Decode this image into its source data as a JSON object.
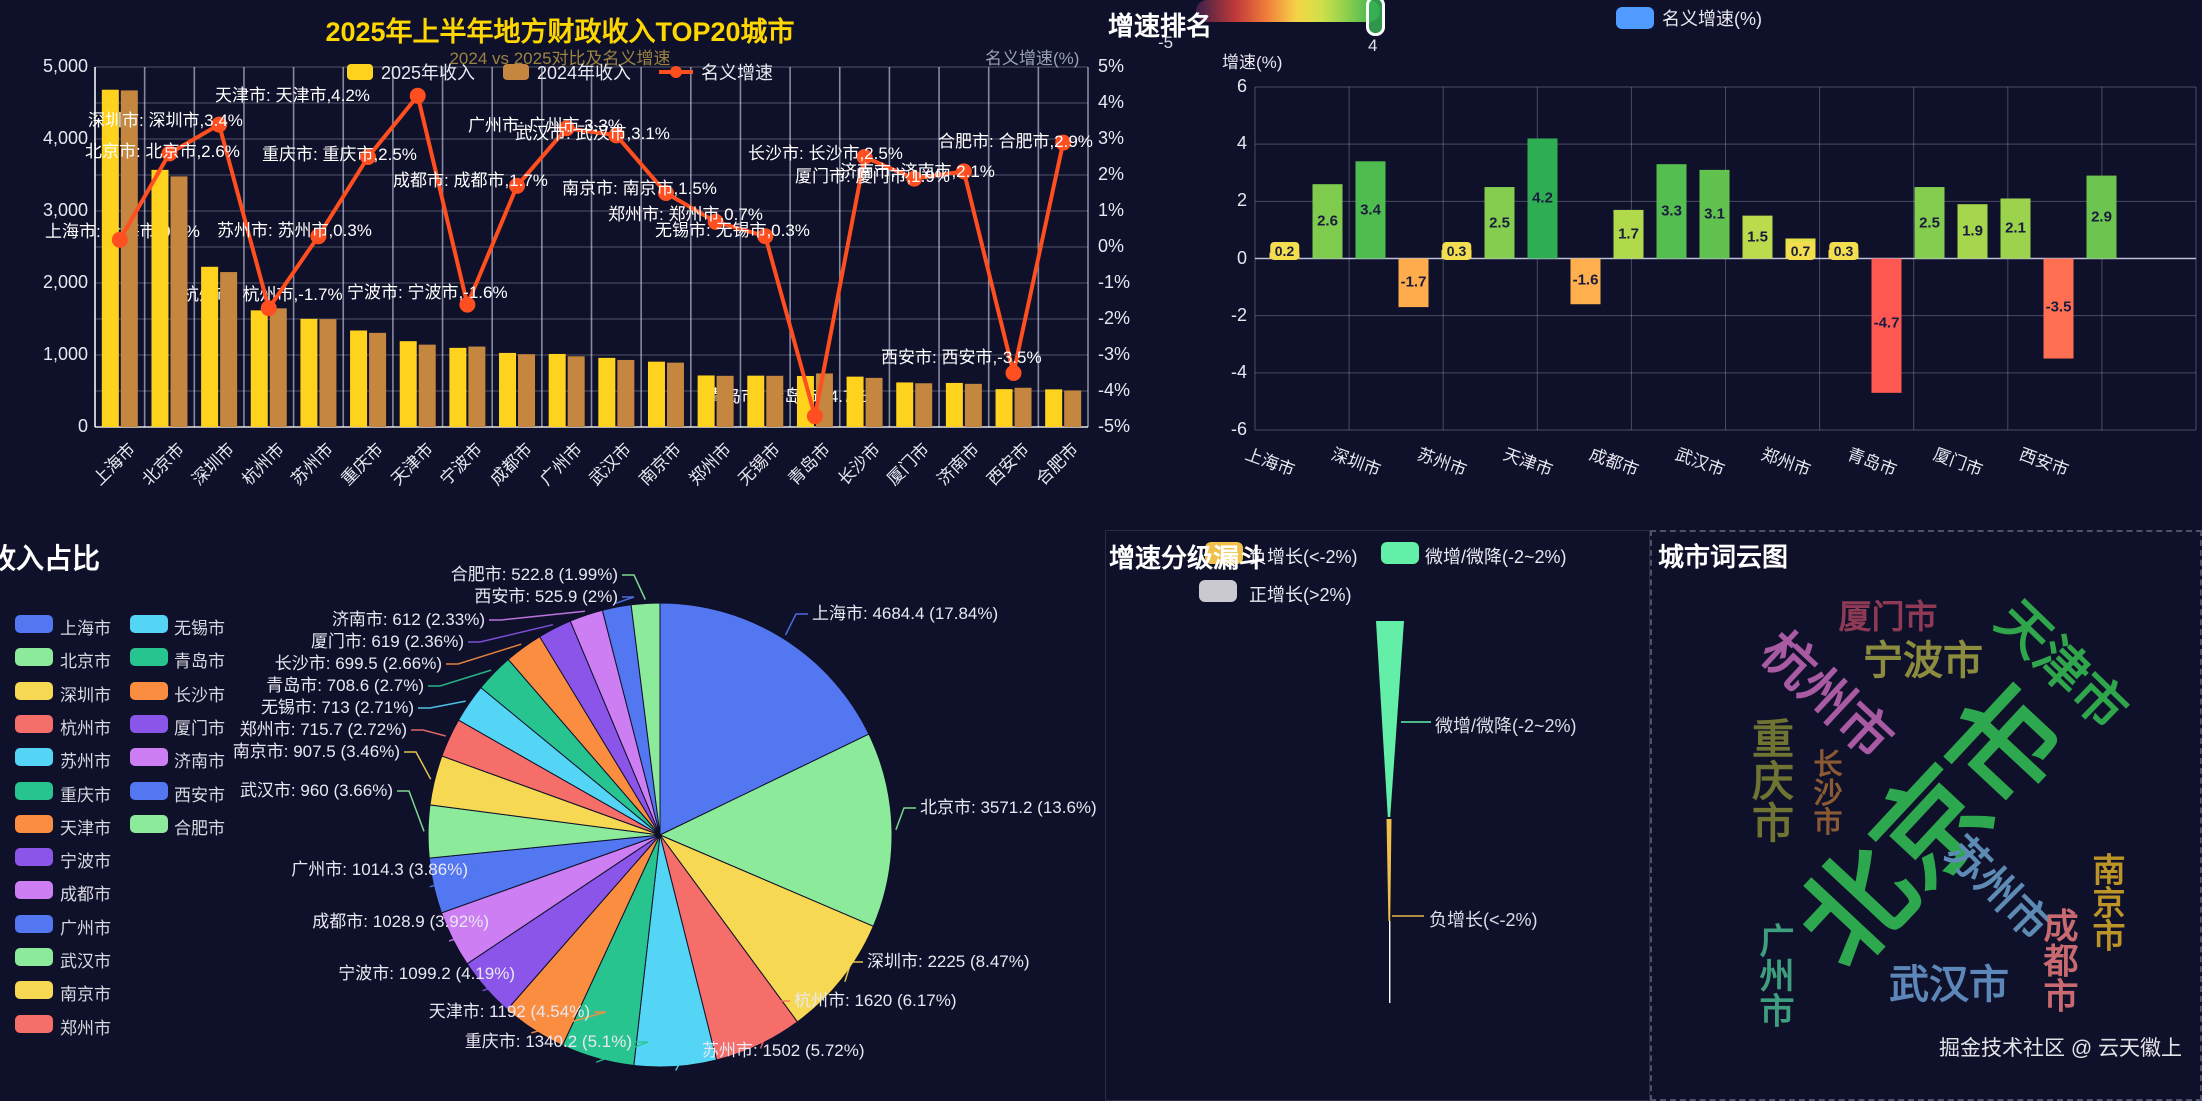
{
  "page": {
    "background": "#0f112a",
    "credit": "掘金技术社区 @ 云天徽上"
  },
  "combo": {
    "title": "2025年上半年地方财政收入TOP20城市",
    "subtitle": "2024 vs 2025对比及名义增速",
    "legend": [
      "2025年收入",
      "2024年收入",
      "名义增速"
    ],
    "y_right_name": "名义增速(%)",
    "colors": {
      "bar2025": "#FFD21E",
      "bar2024": "#C5863F",
      "line": "#FF4E1F"
    }
  },
  "rank": {
    "title": "增速排名",
    "legend": "名义增速(%)",
    "legend_color": "#4F9BFF",
    "vm_min": "-5",
    "vm_max": "4",
    "y_name": "增速(%)"
  },
  "pie": {
    "title": "收入占比",
    "legend_col1": [
      "上海市",
      "北京市",
      "深圳市",
      "杭州市",
      "苏州市",
      "重庆市",
      "天津市",
      "宁波市",
      "成都市",
      "广州市",
      "武汉市",
      "南京市",
      "郑州市"
    ],
    "legend_col2": [
      "无锡市",
      "青岛市",
      "长沙市",
      "厦门市",
      "济南市",
      "西安市",
      "合肥市"
    ]
  },
  "funnel": {
    "title": "增速分级漏斗",
    "legend": [
      "负增长(<-2%)",
      "微增/微降(-2~2%)",
      "正增长(>2%)"
    ],
    "labels": [
      "微增/微降(-2~2%)",
      "负增长(<-2%)"
    ]
  },
  "wordcloud": {
    "title": "城市词云图"
  },
  "chart_data": [
    {
      "type": "bar",
      "subtype": "grouped-bar-with-line",
      "title": "2025年上半年地方财政收入TOP20城市",
      "subtitle": "2024 vs 2025对比及名义增速",
      "categories": [
        "上海市",
        "北京市",
        "深圳市",
        "杭州市",
        "苏州市",
        "重庆市",
        "天津市",
        "宁波市",
        "成都市",
        "广州市",
        "武汉市",
        "南京市",
        "郑州市",
        "无锡市",
        "青岛市",
        "长沙市",
        "厦门市",
        "济南市",
        "西安市",
        "合肥市"
      ],
      "series": [
        {
          "name": "2025年收入",
          "type": "bar",
          "color": "#FFD21E",
          "values": [
            4684.4,
            3571.2,
            2225,
            1620,
            1502,
            1340.2,
            1192,
            1099.2,
            1028.9,
            1014.3,
            960,
            907.5,
            715.7,
            713,
            708.6,
            699.5,
            619,
            612,
            525.9,
            522.8
          ]
        },
        {
          "name": "2024年收入",
          "type": "bar",
          "color": "#C5863F",
          "values": [
            4675,
            3480.7,
            2151.8,
            1648,
            1497.5,
            1307.5,
            1144,
            1117.1,
            1011.7,
            981.9,
            931.1,
            894.1,
            710.7,
            710.9,
            743.5,
            682.4,
            607.5,
            599.4,
            545,
            508.1
          ]
        },
        {
          "name": "名义增速",
          "type": "line",
          "axis": "right",
          "unit": "%",
          "color": "#FF4E1F",
          "values": [
            0.2,
            2.6,
            3.4,
            -1.7,
            0.3,
            2.5,
            4.2,
            -1.6,
            1.7,
            3.3,
            3.1,
            1.5,
            0.7,
            0.3,
            -4.7,
            2.5,
            1.9,
            2.1,
            -3.5,
            2.9
          ]
        }
      ],
      "point_labels": [
        "上海市: 上海市,0.2%",
        "北京市: 北京市,2.6%",
        "深圳市: 深圳市,3.4%",
        "杭州市: 杭州市,-1.7%",
        "苏州市: 苏州市,0.3%",
        "重庆市: 重庆市,2.5%",
        "天津市: 天津市,4.2%",
        "宁波市: 宁波市,-1.6%",
        "成都市: 成都市,1.7%",
        "广州市: 广州市,3.3%",
        "武汉市: 武汉市,3.1%",
        "南京市: 南京市,1.5%",
        "郑州市: 郑州市,0.7%",
        "无锡市: 无锡市,0.3%",
        "青岛市: 青岛市,-4.7%",
        "长沙市: 长沙市,2.5%",
        "厦门市: 厦门市,1.9%",
        "济南市: 济南市,2.1%",
        "西安市: 西安市,-3.5%",
        "合肥市: 合肥市,2.9%"
      ],
      "ylim_left": [
        0,
        5000
      ],
      "ylim_right": [
        -5,
        5
      ],
      "y_left_ticks": [
        "5,000",
        "4,000",
        "3,000",
        "2,000",
        "1,000",
        "0"
      ],
      "y_right_ticks": [
        "5%",
        "4%",
        "3%",
        "2%",
        "1%",
        "0%",
        "-1%",
        "-2%",
        "-3%",
        "-4%",
        "-5%"
      ],
      "legend_position": "top",
      "grid": true
    },
    {
      "type": "bar",
      "title": "增速排名",
      "legend": [
        "名义增速(%)"
      ],
      "categories": [
        "上海市",
        "北京市",
        "深圳市",
        "杭州市",
        "苏州市",
        "重庆市",
        "天津市",
        "宁波市",
        "成都市",
        "广州市",
        "武汉市",
        "南京市",
        "郑州市",
        "无锡市",
        "青岛市",
        "长沙市",
        "厦门市",
        "济南市",
        "西安市",
        "合肥市"
      ],
      "values": [
        0.2,
        2.6,
        3.4,
        -1.7,
        0.3,
        2.5,
        4.2,
        -1.6,
        1.7,
        3.3,
        3.1,
        1.5,
        0.7,
        0.3,
        -4.7,
        2.5,
        1.9,
        2.1,
        -3.5,
        2.9
      ],
      "bar_labels": [
        "0.2",
        "2.6",
        "3.4",
        "-1.7",
        "0.3",
        "2.5",
        "4.2",
        "-1.6",
        "1.7",
        "3.3",
        "3.1",
        "1.5",
        "0.7",
        "0.3",
        "-4.7",
        "2.5",
        "1.9",
        "2.1",
        "-3.5",
        "2.9"
      ],
      "visible_x_labels": [
        "上海市",
        "深圳市",
        "苏州市",
        "天津市",
        "成都市",
        "武汉市",
        "郑州市",
        "青岛市",
        "厦门市",
        "西安市"
      ],
      "ylabel": "增速(%)",
      "ylim": [
        -6,
        6
      ],
      "y_ticks": [
        "6",
        "4",
        "2",
        "0",
        "-2",
        "-4",
        "-6"
      ],
      "visualmap": {
        "min": -5,
        "max": 4
      },
      "grid": true
    },
    {
      "type": "pie",
      "title": "收入占比",
      "categories": [
        "上海市",
        "北京市",
        "深圳市",
        "杭州市",
        "苏州市",
        "重庆市",
        "天津市",
        "宁波市",
        "成都市",
        "广州市",
        "武汉市",
        "南京市",
        "郑州市",
        "无锡市",
        "青岛市",
        "长沙市",
        "厦门市",
        "济南市",
        "西安市",
        "合肥市"
      ],
      "values": [
        4684.4,
        3571.2,
        2225,
        1620,
        1502,
        1340.2,
        1192,
        1099.2,
        1028.9,
        1014.3,
        960,
        907.5,
        715.7,
        713,
        708.6,
        699.5,
        619,
        612,
        525.9,
        522.8
      ],
      "percents": [
        17.84,
        13.6,
        8.47,
        6.17,
        5.72,
        5.1,
        4.54,
        4.19,
        3.92,
        3.86,
        3.66,
        3.46,
        2.72,
        2.71,
        2.7,
        2.66,
        2.36,
        2.33,
        2,
        1.99
      ],
      "labels": [
        "上海市: 4684.4 (17.84%)",
        "北京市: 3571.2 (13.6%)",
        "深圳市: 2225 (8.47%)",
        "杭州市: 1620 (6.17%)",
        "苏州市: 1502 (5.72%)",
        "重庆市: 1340.2 (5.1%)",
        "天津市: 1192 (4.54%)",
        "宁波市: 1099.2 (4.19%)",
        "成都市: 1028.9 (3.92%)",
        "广州市: 1014.3 (3.86%)",
        "武汉市: 960 (3.66%)",
        "南京市: 907.5 (3.46%)",
        "郑州市: 715.7 (2.72%)",
        "无锡市: 713 (2.71%)",
        "青岛市: 708.6 (2.7%)",
        "长沙市: 699.5 (2.66%)",
        "厦门市: 619 (2.36%)",
        "济南市: 612 (2.33%)",
        "西安市: 525.9 (2%)",
        "合肥市: 522.8 (1.99%)"
      ],
      "palette": [
        "#5277F0",
        "#8CEB9B",
        "#F7D852",
        "#F66E6A",
        "#54D5F5",
        "#28C490",
        "#FB8D41",
        "#8A55E8",
        "#CD7EF2"
      ]
    },
    {
      "type": "funnel",
      "title": "增速分级漏斗",
      "legend": [
        "负增长(<-2%)",
        "微增/微降(-2~2%)",
        "正增长(>2%)"
      ],
      "legend_colors": [
        "#F0C04B",
        "#63EFA8",
        "#C9C9CF"
      ],
      "segments": [
        {
          "label": "微增/微降(-2~2%)",
          "color": "#63EFA8"
        },
        {
          "label": "负增长(<-2%)",
          "color": "#F0C04B"
        },
        {
          "label": "正增长(>2%)",
          "color": "#FFFFFF"
        }
      ]
    },
    {
      "type": "wordcloud",
      "title": "城市词云图",
      "words": [
        {
          "text": "北京市",
          "color": "#2EA84E"
        },
        {
          "text": "天津市",
          "color": "#2FA54C"
        },
        {
          "text": "杭州市",
          "color": "#A85AA3"
        },
        {
          "text": "宁波市",
          "color": "#8C8C3E"
        },
        {
          "text": "厦门市",
          "color": "#8E3A55"
        },
        {
          "text": "重庆市",
          "color": "#6F7433"
        },
        {
          "text": "长沙市",
          "color": "#8A5A35"
        },
        {
          "text": "苏州市",
          "color": "#5D8BB3"
        },
        {
          "text": "南京市",
          "color": "#BD9426"
        },
        {
          "text": "成都市",
          "color": "#C96A70"
        },
        {
          "text": "武汉市",
          "color": "#5D87B8"
        },
        {
          "text": "广州市",
          "color": "#3F9E7E"
        }
      ]
    }
  ]
}
